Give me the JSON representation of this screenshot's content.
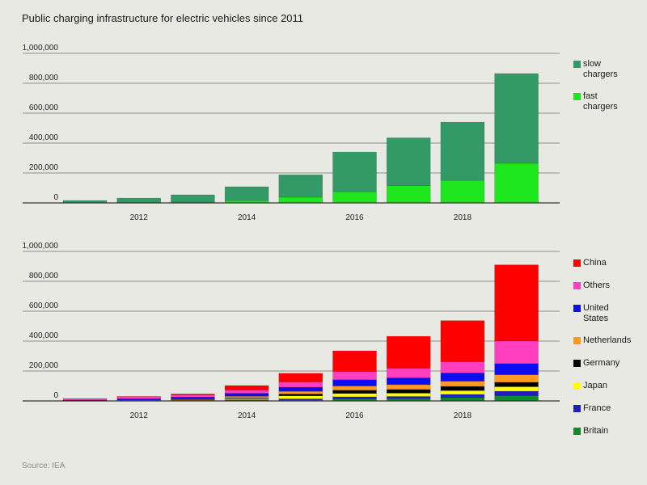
{
  "title": "Public charging infrastructure for electric vehicles since 2011",
  "source": "Source: IEA",
  "background_color": "#e9e9e4",
  "chart_data": [
    {
      "type": "bar",
      "stacked": true,
      "x": [
        2011,
        2012,
        2013,
        2014,
        2015,
        2016,
        2017,
        2018,
        2019
      ],
      "x_tick_labels": [
        "2012",
        "2014",
        "2016",
        "2018"
      ],
      "y_ticks": [
        1000000,
        800000,
        600000,
        400000,
        200000,
        0
      ],
      "y_tick_labels": [
        "1,000,000",
        "800,000",
        "600,000",
        "400,000",
        "200,000",
        "0"
      ],
      "ylim": [
        0,
        1000000
      ],
      "grid": true,
      "legend_position": "right",
      "series": [
        {
          "name": "slow chargers",
          "color": "#339966",
          "values": [
            15000,
            30000,
            49000,
            93000,
            150000,
            265000,
            320000,
            390000,
            600000
          ]
        },
        {
          "name": "fast chargers",
          "color": "#1ee61e",
          "values": [
            1000,
            2000,
            5000,
            15000,
            38000,
            75000,
            115000,
            150000,
            265000
          ]
        }
      ]
    },
    {
      "type": "bar",
      "stacked": true,
      "x": [
        2011,
        2012,
        2013,
        2014,
        2015,
        2016,
        2017,
        2018,
        2019
      ],
      "x_tick_labels": [
        "2012",
        "2014",
        "2016",
        "2018"
      ],
      "y_ticks": [
        1000000,
        800000,
        600000,
        400000,
        200000,
        0
      ],
      "y_tick_labels": [
        "1,000,000",
        "800,000",
        "600,000",
        "400,000",
        "200,000",
        "0"
      ],
      "ylim": [
        0,
        1000000
      ],
      "grid": true,
      "legend_position": "right",
      "series": [
        {
          "name": "China",
          "color": "#ff0000",
          "values": [
            1000,
            2000,
            6000,
            30000,
            58000,
            138000,
            213000,
            275000,
            510000
          ]
        },
        {
          "name": "Others",
          "color": "#ff3fbf",
          "values": [
            9000,
            13000,
            15000,
            22000,
            35000,
            55000,
            65000,
            75000,
            150000
          ]
        },
        {
          "name": "United States",
          "color": "#0d0df2",
          "values": [
            3000,
            9000,
            14000,
            20000,
            28000,
            42000,
            45000,
            55000,
            75000
          ]
        },
        {
          "name": "Netherlands",
          "color": "#ff991f",
          "values": [
            1000,
            2000,
            4000,
            10000,
            18000,
            28000,
            32000,
            35000,
            50000
          ]
        },
        {
          "name": "Germany",
          "color": "#000000",
          "values": [
            800,
            1500,
            3000,
            5000,
            12000,
            22000,
            25000,
            28000,
            30000
          ]
        },
        {
          "name": "Japan",
          "color": "#ffff00",
          "values": [
            500,
            1000,
            2000,
            8000,
            20000,
            22000,
            22000,
            25000,
            30000
          ]
        },
        {
          "name": "France",
          "color": "#1f1fbf",
          "values": [
            400,
            1000,
            2000,
            4000,
            8000,
            15000,
            15000,
            22000,
            30000
          ]
        },
        {
          "name": "Britain",
          "color": "#128a2a",
          "values": [
            300,
            500,
            1000,
            4000,
            6000,
            13000,
            15000,
            22000,
            35000
          ]
        }
      ]
    }
  ]
}
